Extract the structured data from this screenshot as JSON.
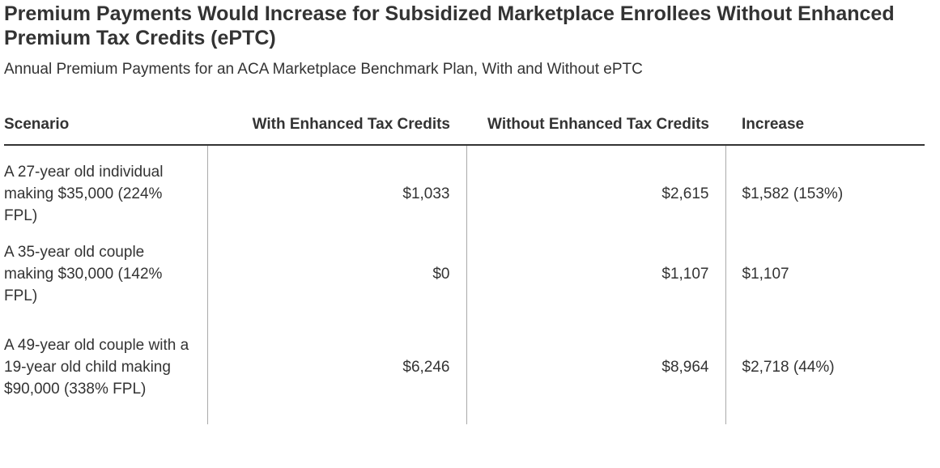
{
  "chart_data": {
    "type": "table",
    "title": "Premium Payments Would Increase for Subsidized Marketplace Enrollees Without Enhanced Premium Tax Credits (ePTC)",
    "subtitle": "Annual Premium Payments for an ACA Marketplace Benchmark Plan, With and Without ePTC",
    "columns": [
      "Scenario",
      "With Enhanced Tax Credits",
      "Without Enhanced Tax Credits",
      "Increase"
    ],
    "rows": [
      [
        "A 27-year old individual making $35,000 (224% FPL)",
        "$1,033",
        "$2,615",
        "$1,582 (153%)"
      ],
      [
        "A 35-year old couple making $30,000 (142% FPL)",
        "$0",
        "$1,107",
        "$1,107"
      ],
      [
        "A 49-year old couple with a 19-year old child making $90,000 (338% FPL)",
        "$6,246",
        "$8,964",
        "$2,718 (44%)"
      ]
    ]
  },
  "colors": {
    "text": "#333333",
    "rule": "#333333",
    "divider": "#aaaaaa"
  }
}
